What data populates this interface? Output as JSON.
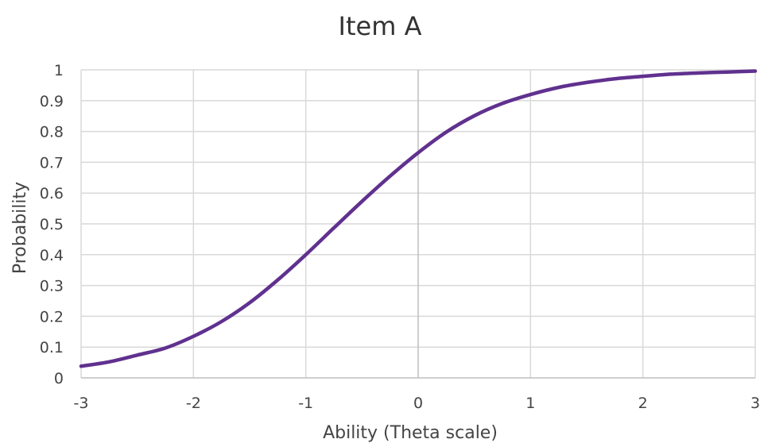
{
  "chart_data": {
    "type": "line",
    "title": "Item A",
    "xlabel": "Ability (Theta scale)",
    "ylabel": "Probability",
    "xlim": [
      -3,
      3
    ],
    "ylim": [
      0,
      1
    ],
    "x_ticks": [
      -3,
      -2,
      -1,
      0,
      1,
      2,
      3
    ],
    "y_ticks": [
      0,
      0.1,
      0.2,
      0.3,
      0.4,
      0.5,
      0.6,
      0.7,
      0.8,
      0.9,
      1
    ],
    "grid": true,
    "legend": "none",
    "series": [
      {
        "color": "#60318f",
        "x": [
          -3,
          -2.75,
          -2.5,
          -2.25,
          -2,
          -1.75,
          -1.5,
          -1.25,
          -1,
          -0.75,
          -0.5,
          -0.25,
          0,
          0.25,
          0.5,
          0.75,
          1,
          1.25,
          1.5,
          1.75,
          2,
          2.25,
          2.5,
          2.75,
          3
        ],
        "y": [
          0.038,
          0.052,
          0.074,
          0.097,
          0.135,
          0.183,
          0.244,
          0.318,
          0.4,
          0.487,
          0.573,
          0.655,
          0.731,
          0.798,
          0.851,
          0.891,
          0.92,
          0.943,
          0.959,
          0.971,
          0.979,
          0.986,
          0.99,
          0.993,
          0.996
        ]
      }
    ]
  }
}
